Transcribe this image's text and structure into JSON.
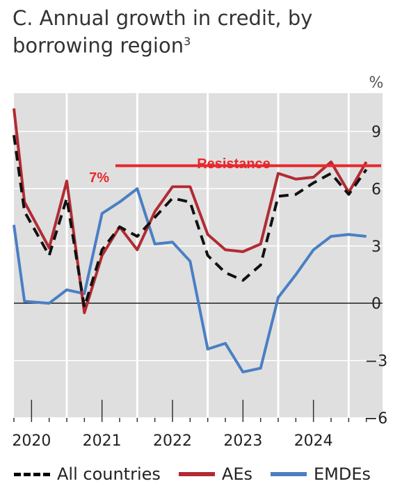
{
  "title": "C. Annual growth in credit, by borrowing region",
  "title_footnote": "3",
  "chart_data": {
    "type": "line",
    "unit_label": "%",
    "ylim": [
      -6,
      11
    ],
    "y_ticks": [
      9,
      6,
      3,
      0,
      -3,
      -6
    ],
    "x_range": [
      2019.75,
      2024.98
    ],
    "x_tick_labels": [
      "2020",
      "2021",
      "2022",
      "2023",
      "2024"
    ],
    "grid": true,
    "legend_position": "bottom",
    "series": [
      {
        "name": "All countries",
        "color": "#111111",
        "style": "dashed",
        "points": [
          [
            2019.75,
            8.8
          ],
          [
            2019.9,
            4.8
          ],
          [
            2020.25,
            2.5
          ],
          [
            2020.5,
            5.5
          ],
          [
            2020.75,
            -0.2
          ],
          [
            2021.0,
            2.8
          ],
          [
            2021.25,
            4.0
          ],
          [
            2021.5,
            3.5
          ],
          [
            2021.75,
            4.5
          ],
          [
            2022.0,
            5.5
          ],
          [
            2022.25,
            5.3
          ],
          [
            2022.5,
            2.5
          ],
          [
            2022.75,
            1.6
          ],
          [
            2023.0,
            1.2
          ],
          [
            2023.25,
            2.0
          ],
          [
            2023.5,
            5.6
          ],
          [
            2023.75,
            5.7
          ],
          [
            2024.0,
            6.3
          ],
          [
            2024.25,
            6.8
          ],
          [
            2024.5,
            5.7
          ],
          [
            2024.75,
            7.0
          ]
        ]
      },
      {
        "name": "AEs",
        "color": "#b22b33",
        "style": "solid",
        "points": [
          [
            2019.75,
            10.2
          ],
          [
            2019.9,
            5.3
          ],
          [
            2020.25,
            2.9
          ],
          [
            2020.5,
            6.4
          ],
          [
            2020.75,
            -0.5
          ],
          [
            2021.0,
            2.5
          ],
          [
            2021.25,
            4.0
          ],
          [
            2021.5,
            2.8
          ],
          [
            2021.75,
            4.8
          ],
          [
            2022.0,
            6.1
          ],
          [
            2022.25,
            6.1
          ],
          [
            2022.5,
            3.6
          ],
          [
            2022.75,
            2.8
          ],
          [
            2023.0,
            2.7
          ],
          [
            2023.25,
            3.1
          ],
          [
            2023.5,
            6.8
          ],
          [
            2023.75,
            6.5
          ],
          [
            2024.0,
            6.6
          ],
          [
            2024.25,
            7.4
          ],
          [
            2024.5,
            5.8
          ],
          [
            2024.75,
            7.4
          ]
        ]
      },
      {
        "name": "EMDEs",
        "color": "#4a7fc4",
        "style": "solid",
        "points": [
          [
            2019.75,
            4.1
          ],
          [
            2019.9,
            0.1
          ],
          [
            2020.25,
            0.0
          ],
          [
            2020.5,
            0.7
          ],
          [
            2020.75,
            0.5
          ],
          [
            2021.0,
            4.7
          ],
          [
            2021.25,
            5.3
          ],
          [
            2021.5,
            6.0
          ],
          [
            2021.75,
            3.1
          ],
          [
            2022.0,
            3.2
          ],
          [
            2022.25,
            2.2
          ],
          [
            2022.5,
            -2.4
          ],
          [
            2022.75,
            -2.1
          ],
          [
            2023.0,
            -3.6
          ],
          [
            2023.25,
            -3.4
          ],
          [
            2023.5,
            0.3
          ],
          [
            2023.75,
            1.5
          ],
          [
            2024.0,
            2.8
          ],
          [
            2024.25,
            3.5
          ],
          [
            2024.5,
            3.6
          ],
          [
            2024.75,
            3.5
          ]
        ]
      }
    ]
  },
  "annotation": {
    "level_label": "7%",
    "text": "Resistance",
    "value": 7.2,
    "color": "#e8282d"
  }
}
